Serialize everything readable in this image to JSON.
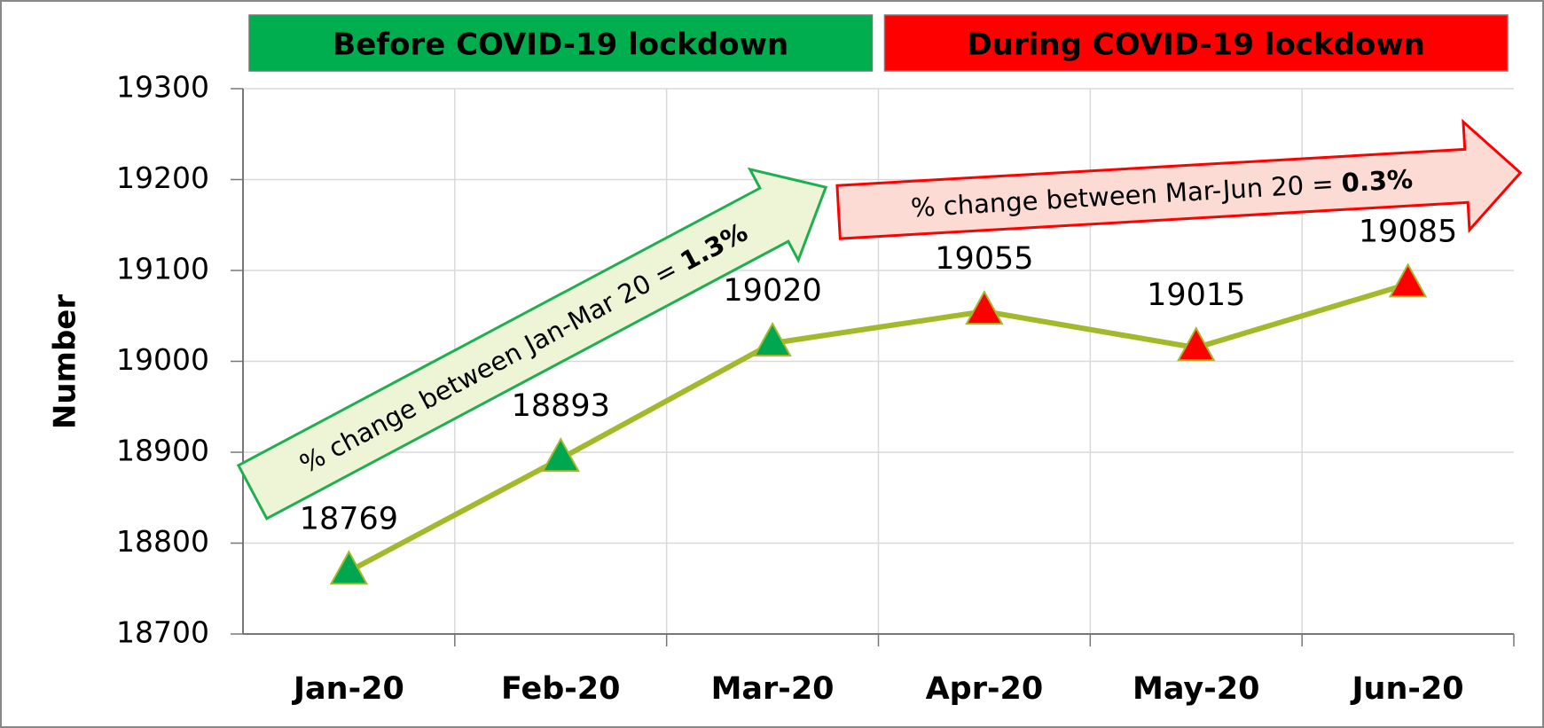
{
  "chart_data": {
    "type": "line",
    "y_label": "Number",
    "categories": [
      "Jan-20",
      "Feb-20",
      "Mar-20",
      "Apr-20",
      "May-20",
      "Jun-20"
    ],
    "series": [
      {
        "color": "#a4b82c",
        "marker_colors": [
          "#00a650",
          "#00a650",
          "#00a650",
          "#ff0000",
          "#ff0000",
          "#ff0000"
        ],
        "values": [
          18769,
          18893,
          19020,
          19055,
          19015,
          19085
        ]
      }
    ],
    "ylim": [
      18700,
      19300
    ],
    "yticks": [
      18700,
      18800,
      18900,
      19000,
      19100,
      19200,
      19300
    ],
    "grid": true,
    "periods": [
      {
        "label": "Before COVID-19 lockdown",
        "color": "#00ad4f"
      },
      {
        "label": "During COVID-19 lockdown",
        "color": "#ff0000"
      }
    ],
    "annotations": [
      {
        "text": "% change between Jan-Mar 20 = ",
        "bold": "1.3%"
      },
      {
        "text": "% change between Mar-Jun 20 = ",
        "bold": "0.3%"
      }
    ]
  }
}
